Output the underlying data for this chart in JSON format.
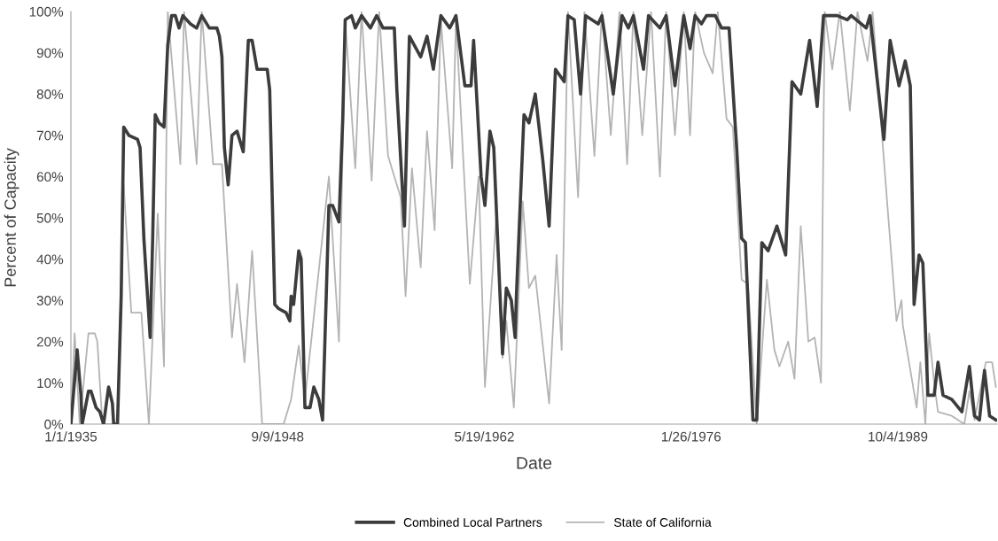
{
  "chart_data": {
    "type": "line",
    "xlabel": "Date",
    "ylabel": "Percent of Capacity",
    "xlim": [
      "1935-01-01",
      "1996-05-01"
    ],
    "xticks": [
      {
        "value": "1935-01-01",
        "label": "1/1/1935"
      },
      {
        "value": "1948-09-09",
        "label": "9/9/1948"
      },
      {
        "value": "1962-05-19",
        "label": "5/19/1962"
      },
      {
        "value": "1976-01-26",
        "label": "1/26/1976"
      },
      {
        "value": "1989-10-04",
        "label": "10/4/1989"
      }
    ],
    "ylim": [
      0,
      100
    ],
    "yticks": [
      {
        "value": 0,
        "label": "0%"
      },
      {
        "value": 10,
        "label": "10%"
      },
      {
        "value": 20,
        "label": "20%"
      },
      {
        "value": 30,
        "label": "30%"
      },
      {
        "value": 40,
        "label": "40%"
      },
      {
        "value": 50,
        "label": "50%"
      },
      {
        "value": 60,
        "label": "60%"
      },
      {
        "value": 70,
        "label": "70%"
      },
      {
        "value": 80,
        "label": "80%"
      },
      {
        "value": 90,
        "label": "90%"
      },
      {
        "value": 100,
        "label": "100%"
      }
    ],
    "grid": false,
    "legend": "bottom",
    "marker": "none",
    "line_style": "solid",
    "series": [
      {
        "name": "Combined Local Partners",
        "color": "#3c3c3c",
        "x": [
          "1935-01",
          "1935-06",
          "1935-09",
          "1935-10",
          "1936-03",
          "1936-05",
          "1936-09",
          "1936-12",
          "1937-03",
          "1937-07",
          "1937-10",
          "1937-11",
          "1938-02",
          "1938-05",
          "1938-07",
          "1938-11",
          "1939-06",
          "1939-08",
          "1939-11",
          "1940-04",
          "1940-06",
          "1940-08",
          "1940-11",
          "1941-03",
          "1941-06",
          "1941-09",
          "1941-12",
          "1942-03",
          "1942-06",
          "1942-12",
          "1943-05",
          "1943-09",
          "1944-03",
          "1944-09",
          "1944-11",
          "1945-01",
          "1945-03",
          "1945-06",
          "1945-09",
          "1946-01",
          "1946-06",
          "1946-10",
          "1947-01",
          "1947-05",
          "1948-01",
          "1948-03",
          "1948-07",
          "1948-10",
          "1949-04",
          "1949-07",
          "1949-08",
          "1949-10",
          "1950-02",
          "1950-04",
          "1950-07",
          "1950-11",
          "1951-02",
          "1951-06",
          "1951-09",
          "1952-02",
          "1952-05",
          "1952-10",
          "1953-01",
          "1953-03",
          "1953-08",
          "1953-11",
          "1954-04",
          "1954-11",
          "1955-04",
          "1955-09",
          "1956-06",
          "1956-08",
          "1957-02",
          "1957-06",
          "1958-03",
          "1958-08",
          "1959-01",
          "1959-07",
          "1960-02",
          "1960-07",
          "1961-02",
          "1961-07",
          "1961-09",
          "1962-03",
          "1962-06",
          "1962-10",
          "1963-01",
          "1963-08",
          "1963-11",
          "1964-03",
          "1964-06",
          "1964-07",
          "1965-01",
          "1965-05",
          "1965-10",
          "1966-04",
          "1966-09",
          "1967-02",
          "1967-09",
          "1967-12",
          "1968-05",
          "1968-10",
          "1969-02",
          "1969-12",
          "1970-03",
          "1970-12",
          "1971-07",
          "1971-12",
          "1972-04",
          "1972-12",
          "1973-04",
          "1974-01",
          "1974-06",
          "1975-01",
          "1975-08",
          "1976-01",
          "1976-05",
          "1976-10",
          "1977-02",
          "1977-09",
          "1978-02",
          "1978-08",
          "1979-02",
          "1979-06",
          "1979-09",
          "1980-03",
          "1980-06",
          "1980-10",
          "1981-03",
          "1981-10",
          "1982-05",
          "1982-10",
          "1983-05",
          "1983-12",
          "1984-06",
          "1984-11",
          "1985-10",
          "1986-06",
          "1986-09",
          "1987-09",
          "1987-12",
          "1988-11",
          "1989-04",
          "1989-11",
          "1990-04",
          "1990-08",
          "1990-11",
          "1991-03",
          "1991-06",
          "1991-10",
          "1992-03",
          "1992-06",
          "1992-10",
          "1993-05",
          "1994-01",
          "1994-07",
          "1994-11",
          "1995-03",
          "1995-07",
          "1995-11",
          "1996-04"
        ],
        "values": [
          0,
          18,
          7,
          0,
          8,
          8,
          4,
          3,
          0,
          9,
          5,
          0,
          0,
          31,
          72,
          70,
          69,
          67,
          45,
          21,
          45,
          75,
          73,
          72,
          92,
          99,
          99,
          96,
          99,
          97,
          96,
          99,
          96,
          96,
          94,
          89,
          67,
          58,
          70,
          71,
          66,
          93,
          93,
          86,
          86,
          81,
          29,
          28,
          27,
          25,
          31,
          29,
          42,
          40,
          4,
          4,
          9,
          6,
          1,
          53,
          53,
          49,
          74,
          98,
          99,
          96,
          99,
          96,
          99,
          96,
          96,
          81,
          48,
          94,
          89,
          94,
          86,
          99,
          96,
          99,
          82,
          82,
          93,
          60,
          53,
          71,
          67,
          17,
          33,
          30,
          21,
          31,
          75,
          73,
          80,
          64,
          48,
          86,
          83,
          99,
          98,
          80,
          99,
          97,
          99,
          80,
          99,
          96,
          99,
          86,
          99,
          96,
          99,
          82,
          99,
          91,
          99,
          97,
          99,
          99,
          96,
          96,
          67,
          45,
          44,
          1,
          1,
          44,
          42,
          48,
          41,
          83,
          80,
          93,
          77,
          99,
          99,
          98,
          99,
          96,
          99,
          69,
          93,
          82,
          88,
          82,
          29,
          41,
          39,
          7,
          7,
          15,
          7,
          6,
          3,
          14,
          2,
          1,
          13,
          2,
          1
        ]
      },
      {
        "name": "State of California",
        "color": "#b4b4b4",
        "x": [
          "1935-01",
          "1935-04",
          "1935-08",
          "1936-03",
          "1936-08",
          "1936-10",
          "1937-02",
          "1938-02",
          "1938-07",
          "1939-01",
          "1939-09",
          "1940-03",
          "1940-10",
          "1941-03",
          "1941-06",
          "1942-04",
          "1942-07",
          "1943-05",
          "1943-09",
          "1944-06",
          "1945-01",
          "1945-09",
          "1946-01",
          "1946-07",
          "1947-01",
          "1947-09",
          "1949-02",
          "1949-08",
          "1950-02",
          "1950-07",
          "1952-02",
          "1952-10",
          "1953-03",
          "1953-11",
          "1954-04",
          "1954-12",
          "1955-06",
          "1956-01",
          "1956-11",
          "1957-03",
          "1957-08",
          "1958-03",
          "1958-08",
          "1959-02",
          "1959-07",
          "1960-04",
          "1960-07",
          "1961-06",
          "1962-01",
          "1962-06",
          "1963-03",
          "1963-08",
          "1963-11",
          "1964-05",
          "1964-12",
          "1965-05",
          "1965-10",
          "1966-09",
          "1967-03",
          "1967-07",
          "1967-12",
          "1968-08",
          "1969-01",
          "1969-09",
          "1970-03",
          "1970-10",
          "1971-05",
          "1971-11",
          "1972-04",
          "1972-11",
          "1973-06",
          "1974-01",
          "1974-06",
          "1975-01",
          "1975-08",
          "1976-01",
          "1976-05",
          "1976-12",
          "1977-07",
          "1977-11",
          "1978-06",
          "1978-11",
          "1979-06",
          "1979-11",
          "1980-06",
          "1981-02",
          "1981-08",
          "1981-12",
          "1982-07",
          "1982-12",
          "1983-05",
          "1983-11",
          "1984-04",
          "1984-09",
          "1984-12",
          "1985-06",
          "1985-12",
          "1986-08",
          "1987-02",
          "1987-10",
          "1988-02",
          "1989-02",
          "1989-09",
          "1990-01",
          "1990-02",
          "1991-01",
          "1991-04",
          "1991-08",
          "1991-11",
          "1992-03",
          "1992-06",
          "1993-05",
          "1994-03",
          "1994-07",
          "1994-11",
          "1995-08",
          "1996-01",
          "1996-04"
        ],
        "values": [
          0,
          22,
          0,
          22,
          22,
          20,
          0,
          0,
          58,
          27,
          27,
          0,
          51,
          14,
          100,
          63,
          100,
          63,
          100,
          63,
          63,
          21,
          34,
          15,
          42,
          0,
          0,
          6,
          19,
          6,
          60,
          20,
          98,
          62,
          100,
          59,
          100,
          65,
          55,
          31,
          62,
          38,
          71,
          47,
          98,
          62,
          98,
          34,
          60,
          9,
          50,
          16,
          25,
          4,
          54,
          33,
          36,
          5,
          41,
          18,
          100,
          55,
          100,
          65,
          100,
          70,
          100,
          63,
          100,
          70,
          100,
          60,
          100,
          70,
          100,
          70,
          100,
          90,
          85,
          100,
          74,
          72,
          35,
          34,
          0,
          35,
          18,
          14,
          20,
          11,
          48,
          20,
          21,
          10,
          100,
          86,
          100,
          76,
          100,
          88,
          100,
          52,
          25,
          30,
          24,
          4,
          15,
          0,
          22,
          10,
          3,
          2,
          0,
          8,
          1,
          15,
          15,
          9
        ]
      }
    ]
  }
}
